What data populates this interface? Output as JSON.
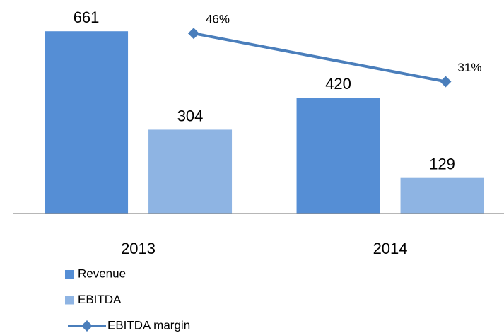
{
  "chart_data": {
    "type": "bar",
    "categories": [
      "2013",
      "2014"
    ],
    "series": [
      {
        "name": "Revenue",
        "type": "bar",
        "color": "#558ed5",
        "values": [
          661,
          420
        ]
      },
      {
        "name": "EBITDA",
        "type": "bar",
        "color": "#8eb4e3",
        "values": [
          304,
          129
        ]
      },
      {
        "name": "EBITDA margin",
        "type": "line",
        "axis": "y2",
        "color": "#4a7ebb",
        "values": [
          46,
          31
        ],
        "value_labels": [
          "46%",
          "31%"
        ]
      }
    ],
    "ylim": [
      0,
      700
    ],
    "y2lim": [
      -10,
      50
    ],
    "legend": "bottom-left"
  }
}
